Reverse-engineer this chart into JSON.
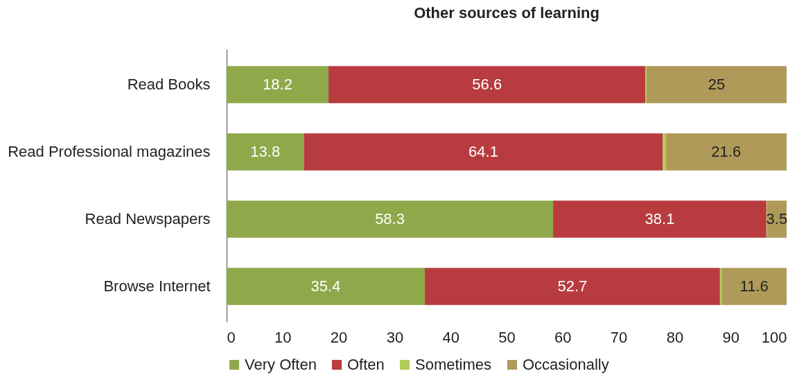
{
  "chart_data": {
    "type": "bar",
    "orientation": "horizontal",
    "stacked": true,
    "title": "Other sources of learning",
    "categories": [
      "Read Books",
      "Read Professional magazines",
      "Read Newspapers",
      "Browse Internet"
    ],
    "series": [
      {
        "name": "Very Often",
        "color": "#8fa84a",
        "values": [
          18.2,
          13.8,
          58.3,
          35.4
        ],
        "value_labels": [
          "18.2",
          "13.8",
          "58.3",
          "35.4"
        ]
      },
      {
        "name": "Often",
        "color": "#b83c3f",
        "values": [
          56.6,
          64.1,
          38.1,
          52.7
        ],
        "value_labels": [
          "56.6",
          "64.1",
          "38.1",
          "52.7"
        ]
      },
      {
        "name": "Sometimes",
        "color": "#b0cc55",
        "values": [
          0.2,
          0.5,
          0.1,
          0.3
        ],
        "value_labels": [
          null,
          null,
          null,
          null
        ]
      },
      {
        "name": "Occasionally",
        "color": "#b09a5a",
        "values": [
          25,
          21.6,
          3.5,
          11.6
        ],
        "value_labels": [
          "25",
          "21.6",
          "3.5",
          "11.6"
        ]
      }
    ],
    "xlim": [
      0,
      100
    ],
    "xticks": [
      0,
      10,
      20,
      30,
      40,
      50,
      60,
      70,
      80,
      90,
      100
    ],
    "grid": false,
    "legend": "bottom"
  }
}
